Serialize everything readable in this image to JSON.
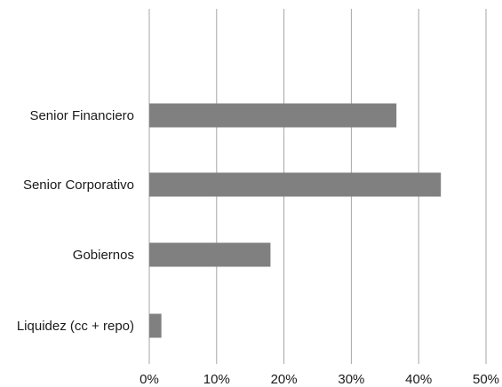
{
  "chart_data": {
    "type": "bar",
    "orientation": "horizontal",
    "categories": [
      "Senior Financiero",
      "Senior Corporativo",
      "Gobiernos",
      "Liquidez (cc + repo)"
    ],
    "values": [
      36.7,
      43.3,
      18.0,
      1.8
    ],
    "xlim": [
      0,
      50
    ],
    "x_ticks": [
      0,
      10,
      20,
      30,
      40,
      50
    ],
    "x_tick_labels": [
      "0%",
      "10%",
      "20%",
      "30%",
      "40%",
      "50%"
    ],
    "grid": "vertical",
    "legend": "none",
    "title": "",
    "xlabel": "",
    "ylabel": "",
    "colors": {
      "bar": "#808080",
      "grid": "#a6a6a6"
    }
  }
}
